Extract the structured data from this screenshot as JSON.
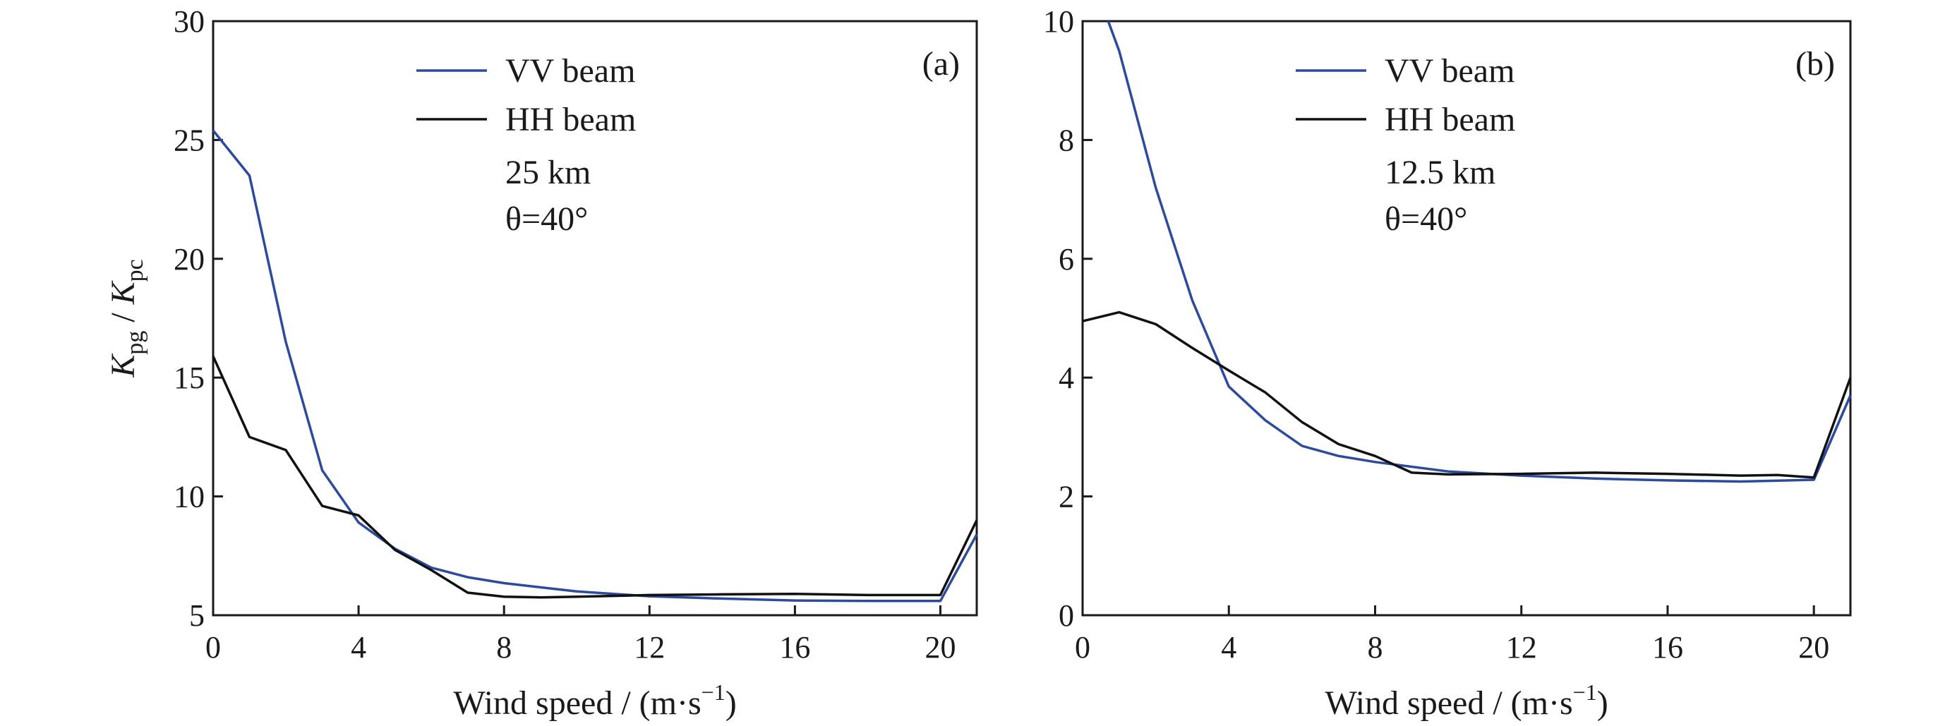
{
  "colors": {
    "vv": "#2c4a9e",
    "hh": "#111111"
  },
  "chart_data": [
    {
      "type": "line",
      "panel_label": "(a)",
      "xlabel_main": "Wind speed / (m·s",
      "xlabel_sup": "−1",
      "xlabel_end": ")",
      "ylabel": {
        "k1": "K",
        "s1": "pg",
        "sep": " / ",
        "k2": "K",
        "s2": "pc"
      },
      "xlim": [
        0,
        21
      ],
      "ylim": [
        5,
        30
      ],
      "xticks": [
        0,
        4,
        8,
        12,
        16,
        20
      ],
      "yticks": [
        5,
        10,
        15,
        20,
        25,
        30
      ],
      "legend_position": "top-center",
      "annotations": [
        "25 km",
        "θ=40°"
      ],
      "series": [
        {
          "name": "VV beam",
          "color": "vv",
          "x": [
            0,
            1,
            2,
            3,
            4,
            5,
            6,
            7,
            8,
            10,
            12,
            14,
            16,
            18,
            20,
            21
          ],
          "y": [
            25.4,
            23.5,
            16.5,
            11.1,
            8.9,
            7.8,
            7.0,
            6.6,
            6.35,
            6.0,
            5.8,
            5.7,
            5.62,
            5.6,
            5.6,
            8.4
          ]
        },
        {
          "name": "HH beam",
          "color": "hh",
          "x": [
            0,
            1,
            2,
            3,
            4,
            5,
            6,
            7,
            8,
            9,
            10,
            12,
            14,
            16,
            18,
            20,
            21
          ],
          "y": [
            15.9,
            12.5,
            11.95,
            9.6,
            9.2,
            7.75,
            6.9,
            5.95,
            5.78,
            5.75,
            5.78,
            5.85,
            5.88,
            5.9,
            5.85,
            5.85,
            9.0
          ]
        }
      ]
    },
    {
      "type": "line",
      "panel_label": "(b)",
      "xlabel_main": "Wind speed / (m·s",
      "xlabel_sup": "−1",
      "xlabel_end": ")",
      "xlim": [
        0,
        21
      ],
      "ylim": [
        0,
        10
      ],
      "xticks": [
        0,
        4,
        8,
        12,
        16,
        20
      ],
      "yticks": [
        0,
        2,
        4,
        6,
        8,
        10
      ],
      "legend_position": "top-center",
      "annotations": [
        "12.5 km",
        "θ=40°"
      ],
      "series": [
        {
          "name": "VV beam",
          "color": "vv",
          "x": [
            0.7,
            1,
            2,
            3,
            4,
            5,
            6,
            7,
            8,
            10,
            12,
            14,
            16,
            18,
            20,
            21
          ],
          "y": [
            10.0,
            9.5,
            7.2,
            5.3,
            3.85,
            3.28,
            2.85,
            2.68,
            2.58,
            2.42,
            2.35,
            2.3,
            2.27,
            2.25,
            2.28,
            3.7
          ]
        },
        {
          "name": "HH beam",
          "color": "hh",
          "x": [
            0,
            1,
            2,
            3,
            4,
            5,
            6,
            7,
            8,
            9,
            10,
            12,
            14,
            16,
            18,
            19,
            20,
            21
          ],
          "y": [
            4.95,
            5.1,
            4.9,
            4.5,
            4.12,
            3.75,
            3.25,
            2.88,
            2.68,
            2.4,
            2.37,
            2.38,
            2.4,
            2.38,
            2.35,
            2.36,
            2.32,
            4.0
          ]
        }
      ]
    }
  ]
}
